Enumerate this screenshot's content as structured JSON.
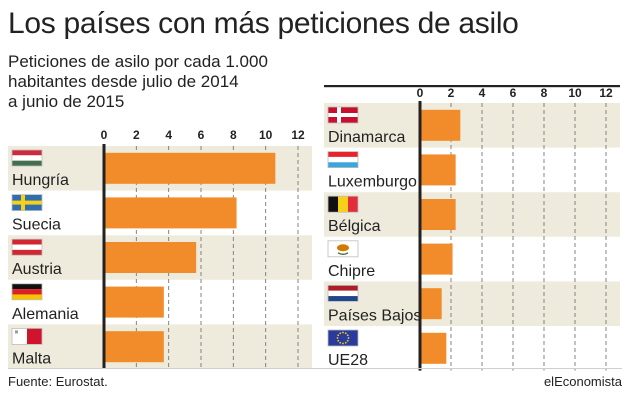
{
  "header": {
    "title": "Los países con más peticiones de asilo",
    "subtitle": "Peticiones de asilo por cada 1.000\nhabitantes desde julio de 2014\na junio de 2015"
  },
  "footer": {
    "source": "Fuente: Eurostat.",
    "brand": "elEconomista"
  },
  "colors": {
    "bar": "#f28b2a",
    "band": "#eeebdc",
    "axis": "#222222",
    "grid": "#777777"
  },
  "chart_data": [
    {
      "type": "bar",
      "orientation": "horizontal",
      "categories": [
        "Hungría",
        "Suecia",
        "Austria",
        "Alemania",
        "Malta"
      ],
      "flags": [
        "hungary-flag",
        "sweden-flag",
        "austria-flag",
        "germany-flag",
        "malta-flag"
      ],
      "values": [
        10.6,
        8.2,
        5.7,
        3.7,
        3.7
      ],
      "xlim": [
        0,
        12
      ],
      "ticks": [
        "0",
        "2",
        "4",
        "6",
        "8",
        "10",
        "12"
      ],
      "grid": true
    },
    {
      "type": "bar",
      "orientation": "horizontal",
      "categories": [
        "Dinamarca",
        "Luxemburgo",
        "Bélgica",
        "Chipre",
        "Países Bajos",
        "UE28"
      ],
      "flags": [
        "denmark-flag",
        "luxembourg-flag",
        "belgium-flag",
        "cyprus-flag",
        "netherlands-flag",
        "eu-flag"
      ],
      "values": [
        2.6,
        2.3,
        2.3,
        2.1,
        1.4,
        1.7
      ],
      "xlim": [
        0,
        12
      ],
      "ticks": [
        "0",
        "2",
        "4",
        "6",
        "8",
        "10",
        "12"
      ],
      "grid": true
    }
  ]
}
